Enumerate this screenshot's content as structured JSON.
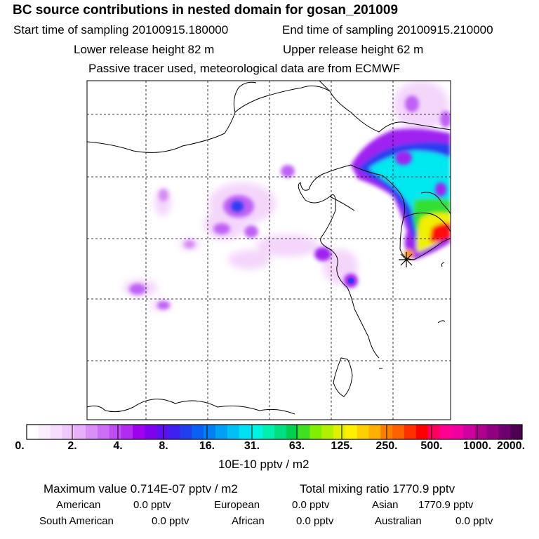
{
  "header": {
    "title": "BC  source contributions in nested domain for gosan_201009",
    "start_label": "Start time of sampling 20100915.180000",
    "end_label": "End time of sampling 20100915.210000",
    "lower_label": "Lower release height   82 m",
    "upper_label": "Upper release height   62 m",
    "tracer_note": "Passive tracer used, meteorological data are from ECMWF"
  },
  "colorbar": {
    "tick_labels": [
      "0.",
      "2.",
      "4.",
      "8.",
      "16.",
      "31.",
      "63.",
      "125.",
      "250.",
      "500.",
      "1000.",
      "2000."
    ],
    "units": "10E-10 pptv / m2",
    "colors": [
      "#ffffff",
      "#fbeefe",
      "#f6dcfd",
      "#f0c8fb",
      "#e9b0fa",
      "#d98ff6",
      "#cd6ff5",
      "#c04cf3",
      "#b02cf0",
      "#a000f0",
      "#8000f0",
      "#6010f0",
      "#4020f0",
      "#2040f0",
      "#0a60f5",
      "#0080f5",
      "#00a0f5",
      "#00c0f5",
      "#00e0f5",
      "#00f5e0",
      "#00f0b0",
      "#00e080",
      "#00d050",
      "#40e020",
      "#80f000",
      "#b0f000",
      "#e0f000",
      "#fff000",
      "#ffd000",
      "#ffb000",
      "#ff8000",
      "#ff6000",
      "#ff3000",
      "#ff0000",
      "#ff0060",
      "#ff0090",
      "#f000a0",
      "#d000a0",
      "#b00090",
      "#900080",
      "#700070",
      "#500050"
    ]
  },
  "stats": {
    "max_label": "Maximum value  0.714E-07 pptv / m2",
    "total_label": "Total mixing ratio     1770.9 pptv",
    "american_label": "American",
    "american_value": "0.0 pptv",
    "european_label": "European",
    "european_value": "0.0 pptv",
    "asian_label": "Asian",
    "asian_value": "1770.9 pptv",
    "south_american_label": "South American",
    "south_american_value": "0.0 pptv",
    "african_label": "African",
    "african_value": "0.0 pptv",
    "australian_label": "Australian",
    "australian_value": "0.0 pptv"
  },
  "map": {
    "receptor_marker": "gosan-star-marker",
    "plume_colors": {
      "light": "#f3d2fb",
      "mid": "#d58cf5",
      "purple": "#a020f0",
      "blue": "#2a3cf0",
      "cyan": "#00f0f0",
      "green": "#30e030",
      "yellow": "#f0f000",
      "orange": "#ff9000",
      "red": "#ff1010",
      "magenta": "#f000a0"
    }
  }
}
